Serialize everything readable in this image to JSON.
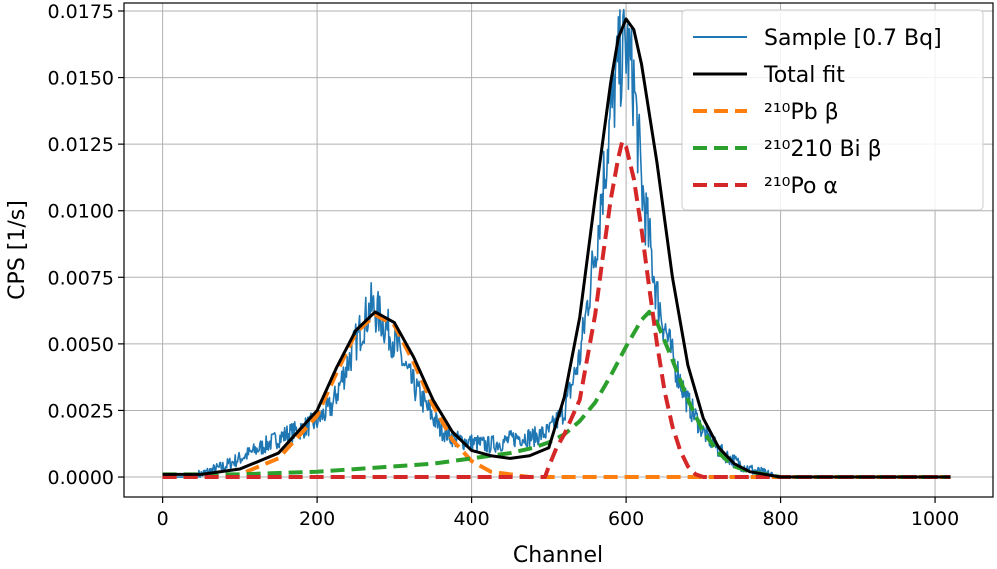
{
  "chart_data": {
    "type": "line",
    "title": "",
    "xlabel": "Channel",
    "ylabel": "CPS [1/s]",
    "xlim": [
      -50,
      1075
    ],
    "ylim": [
      -0.00075,
      0.0178
    ],
    "x_ticks": [
      0,
      200,
      400,
      600,
      800,
      1000
    ],
    "x_tick_labels": [
      "0",
      "200",
      "400",
      "600",
      "800",
      "1000"
    ],
    "y_ticks": [
      0,
      0.0025,
      0.005,
      0.0075,
      0.01,
      0.0125,
      0.015,
      0.0175
    ],
    "y_tick_labels": [
      "0.0000",
      "0.0025",
      "0.0050",
      "0.0075",
      "0.0100",
      "0.0125",
      "0.0150",
      "0.0175"
    ],
    "grid": true,
    "legend_position": "top-right",
    "series": [
      {
        "name": "Sample [0.7 Bq]",
        "color": "#1f77b4",
        "style": "solid",
        "x": [
          0,
          20,
          40,
          60,
          80,
          100,
          120,
          140,
          160,
          180,
          200,
          220,
          240,
          260,
          270,
          280,
          300,
          320,
          340,
          360,
          380,
          400,
          420,
          440,
          460,
          480,
          500,
          520,
          540,
          560,
          580,
          590,
          600,
          610,
          620,
          640,
          660,
          680,
          700,
          720,
          740,
          760,
          780,
          800,
          850,
          900,
          950,
          1000,
          1020
        ],
        "y": [
          0.0,
          0.0,
          0.0,
          0.0002,
          0.0004,
          0.0007,
          0.001,
          0.0013,
          0.0016,
          0.0018,
          0.0021,
          0.0027,
          0.0043,
          0.0058,
          0.0064,
          0.0061,
          0.0051,
          0.0037,
          0.0027,
          0.0018,
          0.0014,
          0.0013,
          0.0012,
          0.0013,
          0.0015,
          0.0015,
          0.0017,
          0.0025,
          0.0045,
          0.0085,
          0.0135,
          0.0155,
          0.0162,
          0.0148,
          0.011,
          0.0068,
          0.0045,
          0.0028,
          0.0017,
          0.001,
          0.0006,
          0.0003,
          0.0001,
          0.0,
          0.0,
          0.0,
          0.0,
          0.0,
          0.0
        ]
      },
      {
        "name": "Total fit",
        "color": "#000000",
        "style": "solid",
        "x": [
          0,
          50,
          100,
          150,
          200,
          225,
          250,
          275,
          300,
          325,
          350,
          375,
          400,
          425,
          450,
          475,
          500,
          520,
          540,
          560,
          580,
          590,
          600,
          610,
          620,
          640,
          660,
          680,
          700,
          720,
          740,
          760,
          780,
          800,
          850,
          900,
          950,
          1000,
          1020
        ],
        "y": [
          0.0001,
          0.0001,
          0.0003,
          0.0009,
          0.0025,
          0.0041,
          0.0055,
          0.0062,
          0.0058,
          0.0045,
          0.0029,
          0.0017,
          0.001,
          0.0008,
          0.0007,
          0.0008,
          0.0011,
          0.003,
          0.006,
          0.0105,
          0.0148,
          0.0165,
          0.0172,
          0.0168,
          0.0155,
          0.0118,
          0.0075,
          0.0042,
          0.0022,
          0.0011,
          0.0005,
          0.0002,
          0.0001,
          0.0,
          0.0,
          0.0,
          0.0,
          0.0,
          0.0
        ]
      },
      {
        "name": "²¹⁰Pb β",
        "color": "#ff7f0e",
        "style": "dashed",
        "x": [
          0,
          50,
          100,
          150,
          200,
          225,
          250,
          275,
          300,
          325,
          350,
          375,
          400,
          425,
          450,
          475,
          500,
          600,
          700,
          800,
          900,
          1020
        ],
        "y": [
          0.0,
          0.0,
          0.0001,
          0.0007,
          0.0023,
          0.0039,
          0.0054,
          0.0061,
          0.0057,
          0.0043,
          0.0027,
          0.0014,
          0.0006,
          0.0002,
          0.0001,
          0.0,
          0.0,
          0.0,
          0.0,
          0.0,
          0.0,
          0.0
        ]
      },
      {
        "name": "²¹⁰210 Bi β",
        "color": "#2ca02c",
        "style": "dashed",
        "x": [
          0,
          100,
          200,
          300,
          350,
          400,
          450,
          480,
          500,
          520,
          540,
          560,
          580,
          600,
          620,
          630,
          640,
          660,
          680,
          700,
          720,
          740,
          760,
          780,
          800,
          850,
          900,
          950,
          1020
        ],
        "y": [
          0.0001,
          0.0001,
          0.0002,
          0.0004,
          0.0005,
          0.0007,
          0.0009,
          0.0011,
          0.0013,
          0.0016,
          0.0021,
          0.0028,
          0.0038,
          0.0049,
          0.0059,
          0.0062,
          0.0058,
          0.0044,
          0.0029,
          0.0017,
          0.0009,
          0.0004,
          0.0002,
          0.0001,
          0.0,
          0.0,
          0.0,
          0.0,
          0.0
        ]
      },
      {
        "name": "²¹⁰Po α",
        "color": "#d62728",
        "style": "dashed",
        "x": [
          0,
          100,
          200,
          300,
          400,
          495,
          500,
          510,
          520,
          540,
          560,
          570,
          580,
          590,
          595,
          600,
          610,
          620,
          630,
          640,
          650,
          660,
          670,
          680,
          690,
          700,
          720,
          800,
          900,
          1020
        ],
        "y": [
          0.0,
          0.0,
          0.0,
          0.0,
          0.0,
          0.0,
          0.0004,
          0.0011,
          0.0016,
          0.0029,
          0.0061,
          0.0083,
          0.0104,
          0.012,
          0.0126,
          0.0124,
          0.0112,
          0.0093,
          0.0071,
          0.005,
          0.0032,
          0.0019,
          0.001,
          0.0004,
          0.0001,
          0.0,
          0.0,
          0.0,
          0.0,
          0.0
        ]
      }
    ]
  }
}
